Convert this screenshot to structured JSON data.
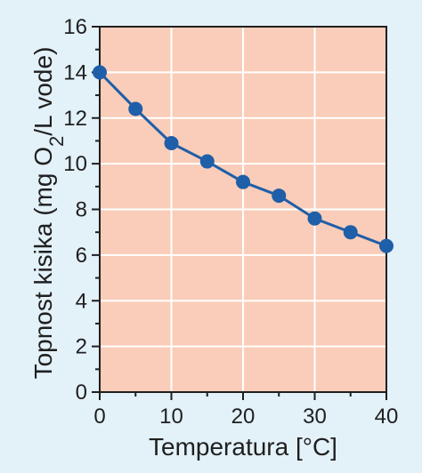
{
  "chart_data": {
    "type": "line",
    "title": "",
    "xlabel": "Temperatura [°C]",
    "ylabel_main": "Topnost kisika (mg O",
    "ylabel_sub": "2",
    "ylabel_tail": "/L vode)",
    "xlim": [
      0,
      40
    ],
    "ylim": [
      0,
      16
    ],
    "xticks": [
      0,
      10,
      20,
      30,
      40
    ],
    "xtick_labels": [
      "0",
      "10",
      "20",
      "30",
      "40"
    ],
    "x_minor_ticks": [
      5,
      15,
      25,
      35
    ],
    "yticks": [
      0,
      2,
      4,
      6,
      8,
      10,
      12,
      14,
      16
    ],
    "ytick_labels": [
      "0",
      "2",
      "4",
      "6",
      "8",
      "10",
      "12",
      "14",
      "16"
    ],
    "y_minor_ticks": [
      1,
      3,
      5,
      7,
      9,
      11,
      13,
      15
    ],
    "grid": "vertical and horizontal at major ticks",
    "series": [
      {
        "x": [
          0,
          5,
          10,
          15,
          20,
          25,
          30,
          35,
          40
        ],
        "values": [
          14.0,
          12.4,
          10.9,
          10.1,
          9.2,
          8.6,
          7.6,
          7.0,
          6.4
        ]
      }
    ],
    "colors": {
      "background": "#e3f1f9",
      "plot_area": "#f9cdb9",
      "grid": "#ffffff",
      "line": "#1f5ea8",
      "marker": "#1f5ea8",
      "axis": "#1f1f1f"
    }
  }
}
